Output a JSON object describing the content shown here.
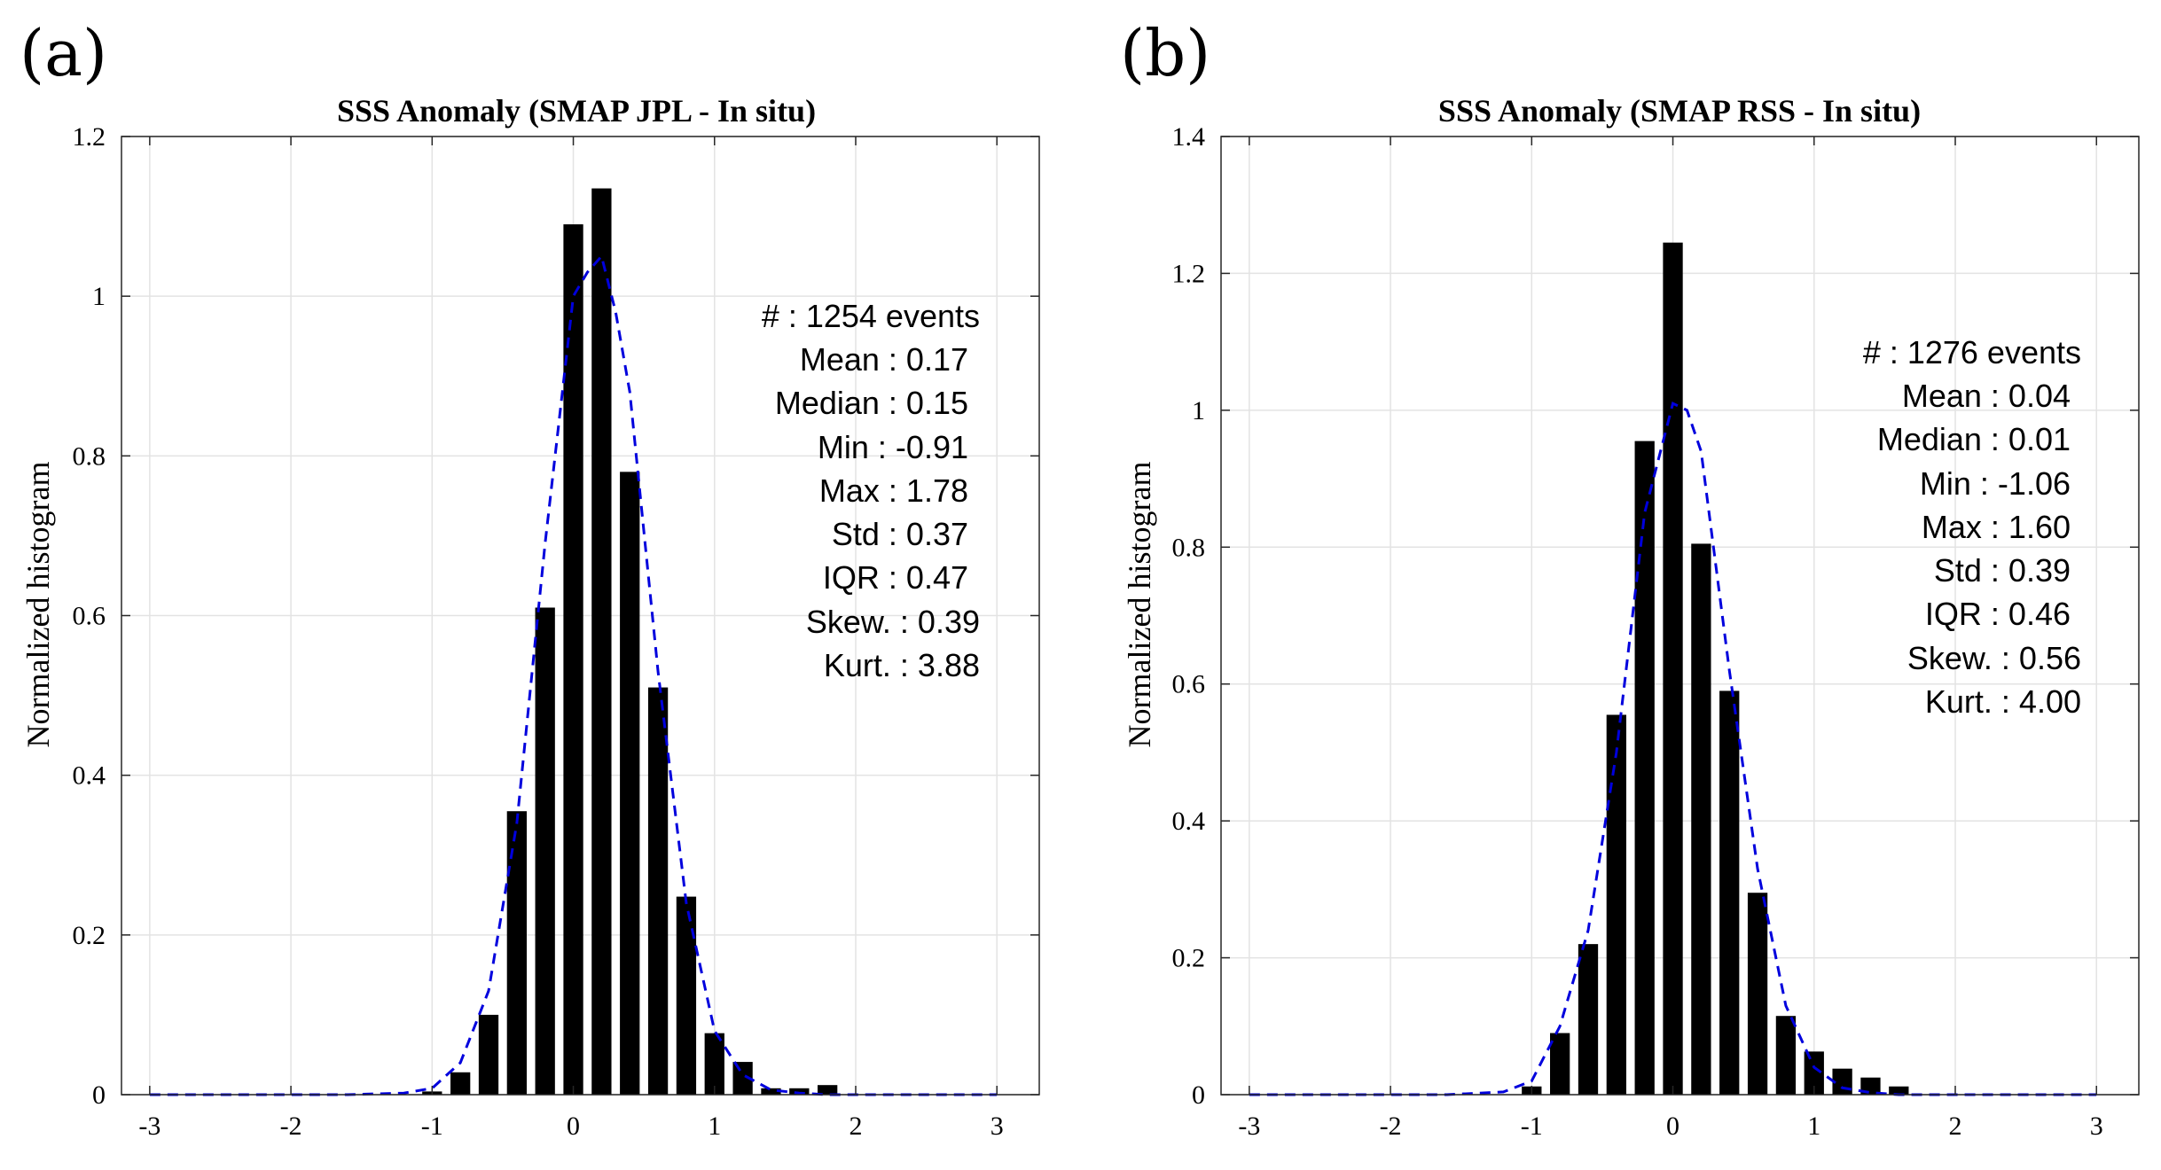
{
  "panels": [
    {
      "letter": "(a)",
      "title": "SSS Anomaly (SMAP JPL - In situ)",
      "ylabel": "Normalized histogram",
      "stats": [
        "#  : 1254 events",
        "Mean : 0.17",
        "Median : 0.15",
        "Min : -0.91",
        "Max : 1.78",
        "Std : 0.37",
        "IQR : 0.47",
        "Skew. : 0.39",
        "Kurt. : 3.88"
      ]
    },
    {
      "letter": "(b)",
      "title": "SSS Anomaly (SMAP RSS - In situ)",
      "ylabel": "Normalized histogram",
      "stats": [
        "#  : 1276 events",
        "Mean : 0.04",
        "Median : 0.01",
        "Min : -1.06",
        "Max : 1.60",
        "Std : 0.39",
        "IQR : 0.46",
        "Skew. : 0.56",
        "Kurt. : 4.00"
      ]
    }
  ],
  "colors": {
    "bars": "#000000",
    "fit_line": "#0000dd",
    "grid": "#e3e3e3",
    "axis": "#262626"
  },
  "chart_data": [
    {
      "type": "bar",
      "title": "SSS Anomaly (SMAP JPL - In situ)",
      "xlabel": "",
      "ylabel": "Normalized histogram",
      "xlim": [
        -3.2,
        3.3
      ],
      "ylim": [
        0,
        1.2
      ],
      "xticks": [
        -3,
        -2,
        -1,
        0,
        1,
        2,
        3
      ],
      "yticks": [
        0,
        0.2,
        0.4,
        0.6,
        0.8,
        1,
        1.2
      ],
      "ytick_labels": [
        "0",
        "0.2",
        "0.4",
        "0.6",
        "0.8",
        "1",
        "1.2"
      ],
      "grid": true,
      "bar_width": 0.14,
      "bars": {
        "x": [
          -1.0,
          -0.8,
          -0.6,
          -0.4,
          -0.2,
          0.0,
          0.2,
          0.4,
          0.6,
          0.8,
          1.0,
          1.2,
          1.4,
          1.6,
          1.8
        ],
        "values": [
          0.004,
          0.028,
          0.1,
          0.355,
          0.61,
          1.09,
          1.135,
          0.78,
          0.51,
          0.248,
          0.077,
          0.041,
          0.008,
          0.008,
          0.012
        ]
      },
      "fit": {
        "x": [
          -3.0,
          -2.4,
          -2.0,
          -1.6,
          -1.2,
          -1.0,
          -0.8,
          -0.6,
          -0.4,
          -0.2,
          0.0,
          0.1,
          0.2,
          0.3,
          0.4,
          0.6,
          0.8,
          1.0,
          1.2,
          1.4,
          1.6,
          1.8,
          2.0,
          2.4,
          3.0
        ],
        "values": [
          0,
          0,
          0,
          0,
          0.002,
          0.008,
          0.04,
          0.13,
          0.34,
          0.69,
          1.0,
          1.03,
          1.05,
          0.98,
          0.88,
          0.53,
          0.24,
          0.08,
          0.025,
          0.006,
          0.002,
          0,
          0,
          0,
          0
        ]
      }
    },
    {
      "type": "bar",
      "title": "SSS Anomaly (SMAP RSS - In situ)",
      "xlabel": "",
      "ylabel": "Normalized histogram",
      "xlim": [
        -3.2,
        3.3
      ],
      "ylim": [
        0,
        1.4
      ],
      "xticks": [
        -3,
        -2,
        -1,
        0,
        1,
        2,
        3
      ],
      "yticks": [
        0,
        0.2,
        0.4,
        0.6,
        0.8,
        1,
        1.2,
        1.4
      ],
      "ytick_labels": [
        "0",
        "0.2",
        "0.4",
        "0.6",
        "0.8",
        "1",
        "1.2",
        "1.4"
      ],
      "grid": true,
      "bar_width": 0.14,
      "bars": {
        "x": [
          -1.0,
          -0.8,
          -0.6,
          -0.4,
          -0.2,
          0.0,
          0.2,
          0.4,
          0.6,
          0.8,
          1.0,
          1.2,
          1.4,
          1.6
        ],
        "values": [
          0.012,
          0.09,
          0.22,
          0.555,
          0.955,
          1.245,
          0.805,
          0.59,
          0.295,
          0.115,
          0.063,
          0.038,
          0.025,
          0.012
        ]
      },
      "fit": {
        "x": [
          -3.0,
          -2.4,
          -2.0,
          -1.6,
          -1.2,
          -1.0,
          -0.8,
          -0.6,
          -0.4,
          -0.2,
          0.0,
          0.1,
          0.2,
          0.4,
          0.6,
          0.8,
          1.0,
          1.2,
          1.4,
          1.6,
          2.0,
          2.4,
          3.0
        ],
        "values": [
          0,
          0,
          0,
          0,
          0.004,
          0.02,
          0.1,
          0.24,
          0.5,
          0.85,
          1.01,
          1.0,
          0.94,
          0.62,
          0.33,
          0.13,
          0.04,
          0.01,
          0.003,
          0,
          0,
          0,
          0
        ]
      }
    }
  ]
}
